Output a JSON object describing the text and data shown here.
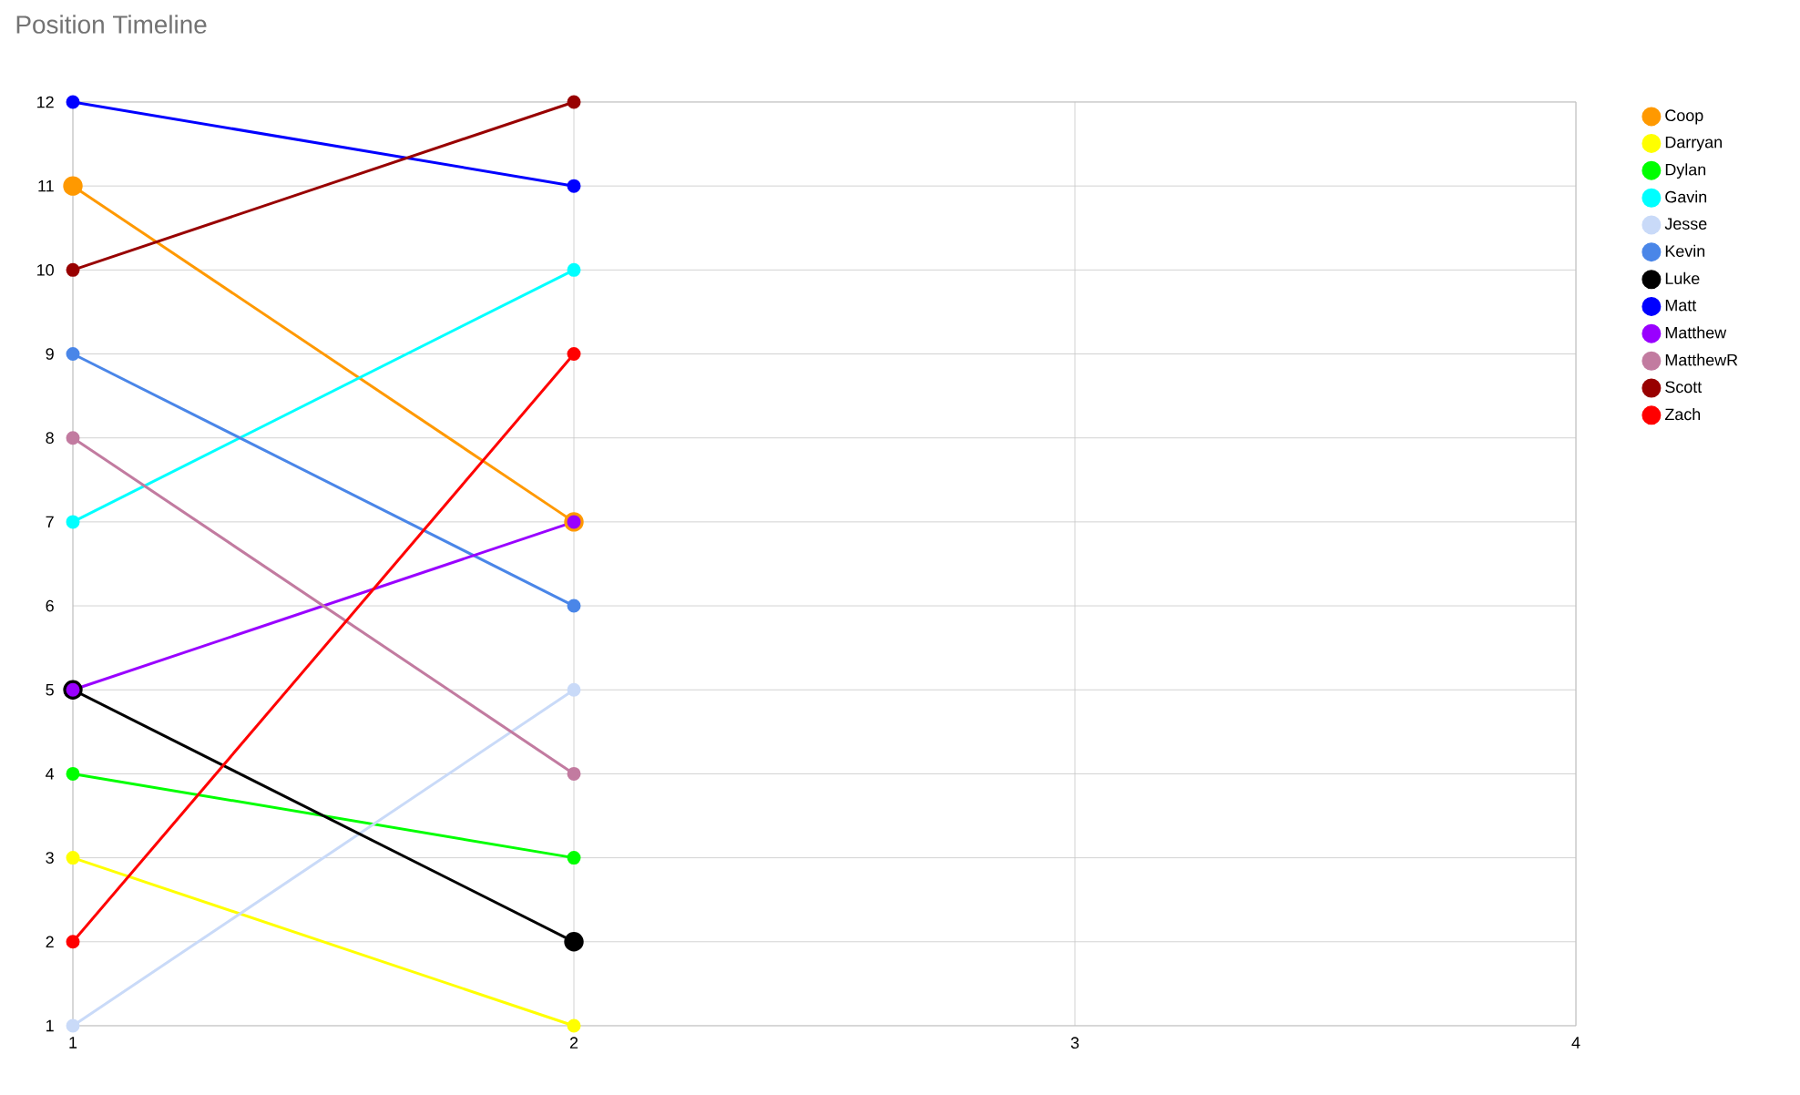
{
  "chart_data": {
    "type": "line",
    "title": "Position Timeline",
    "x": [
      1,
      2
    ],
    "series": [
      {
        "name": "Coop",
        "color": "#ff9900",
        "values": [
          11,
          7
        ]
      },
      {
        "name": "Darryan",
        "color": "#ffff00",
        "values": [
          3,
          1
        ]
      },
      {
        "name": "Dylan",
        "color": "#00ff00",
        "values": [
          4,
          3
        ]
      },
      {
        "name": "Gavin",
        "color": "#00ffff",
        "values": [
          7,
          10
        ]
      },
      {
        "name": "Jesse",
        "color": "#c9daf8",
        "values": [
          1,
          5
        ]
      },
      {
        "name": "Kevin",
        "color": "#4a86e8",
        "values": [
          9,
          6
        ]
      },
      {
        "name": "Luke",
        "color": "#000000",
        "values": [
          5,
          2
        ]
      },
      {
        "name": "Matt",
        "color": "#0000ff",
        "values": [
          12,
          11
        ]
      },
      {
        "name": "Matthew",
        "color": "#9900ff",
        "values": [
          5,
          7
        ]
      },
      {
        "name": "MatthewR",
        "color": "#c27ba0",
        "values": [
          8,
          4
        ]
      },
      {
        "name": "Scott",
        "color": "#980000",
        "values": [
          10,
          12
        ]
      },
      {
        "name": "Zach",
        "color": "#ff0000",
        "values": [
          2,
          9
        ]
      }
    ],
    "xlim": [
      1,
      4
    ],
    "xticks": [
      1,
      2,
      3,
      4
    ],
    "ylim": [
      1,
      12
    ],
    "yticks": [
      1,
      2,
      3,
      4,
      5,
      6,
      7,
      8,
      9,
      10,
      11,
      12
    ],
    "grid": true,
    "legend": "right",
    "marker": "circle",
    "line_style": "solid"
  }
}
